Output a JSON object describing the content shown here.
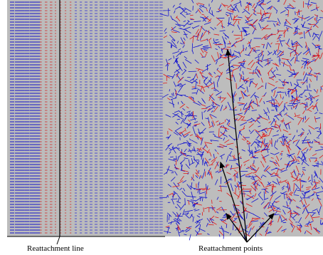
{
  "figure": {
    "left_panel": {
      "field": "regular-vector-columns",
      "background_color": "#bcbcbc",
      "band_colors": [
        "#1414c8",
        "#d02020",
        "#2a2ad0"
      ]
    },
    "right_panel": {
      "field": "turbulent-streaks",
      "background_color": "#bdbdbd",
      "streak_colors": [
        "#1010d0",
        "#e01818"
      ]
    },
    "annotation_color": "#000000"
  },
  "captions": {
    "left": "Reattachment line",
    "right": "Reattachment points"
  }
}
